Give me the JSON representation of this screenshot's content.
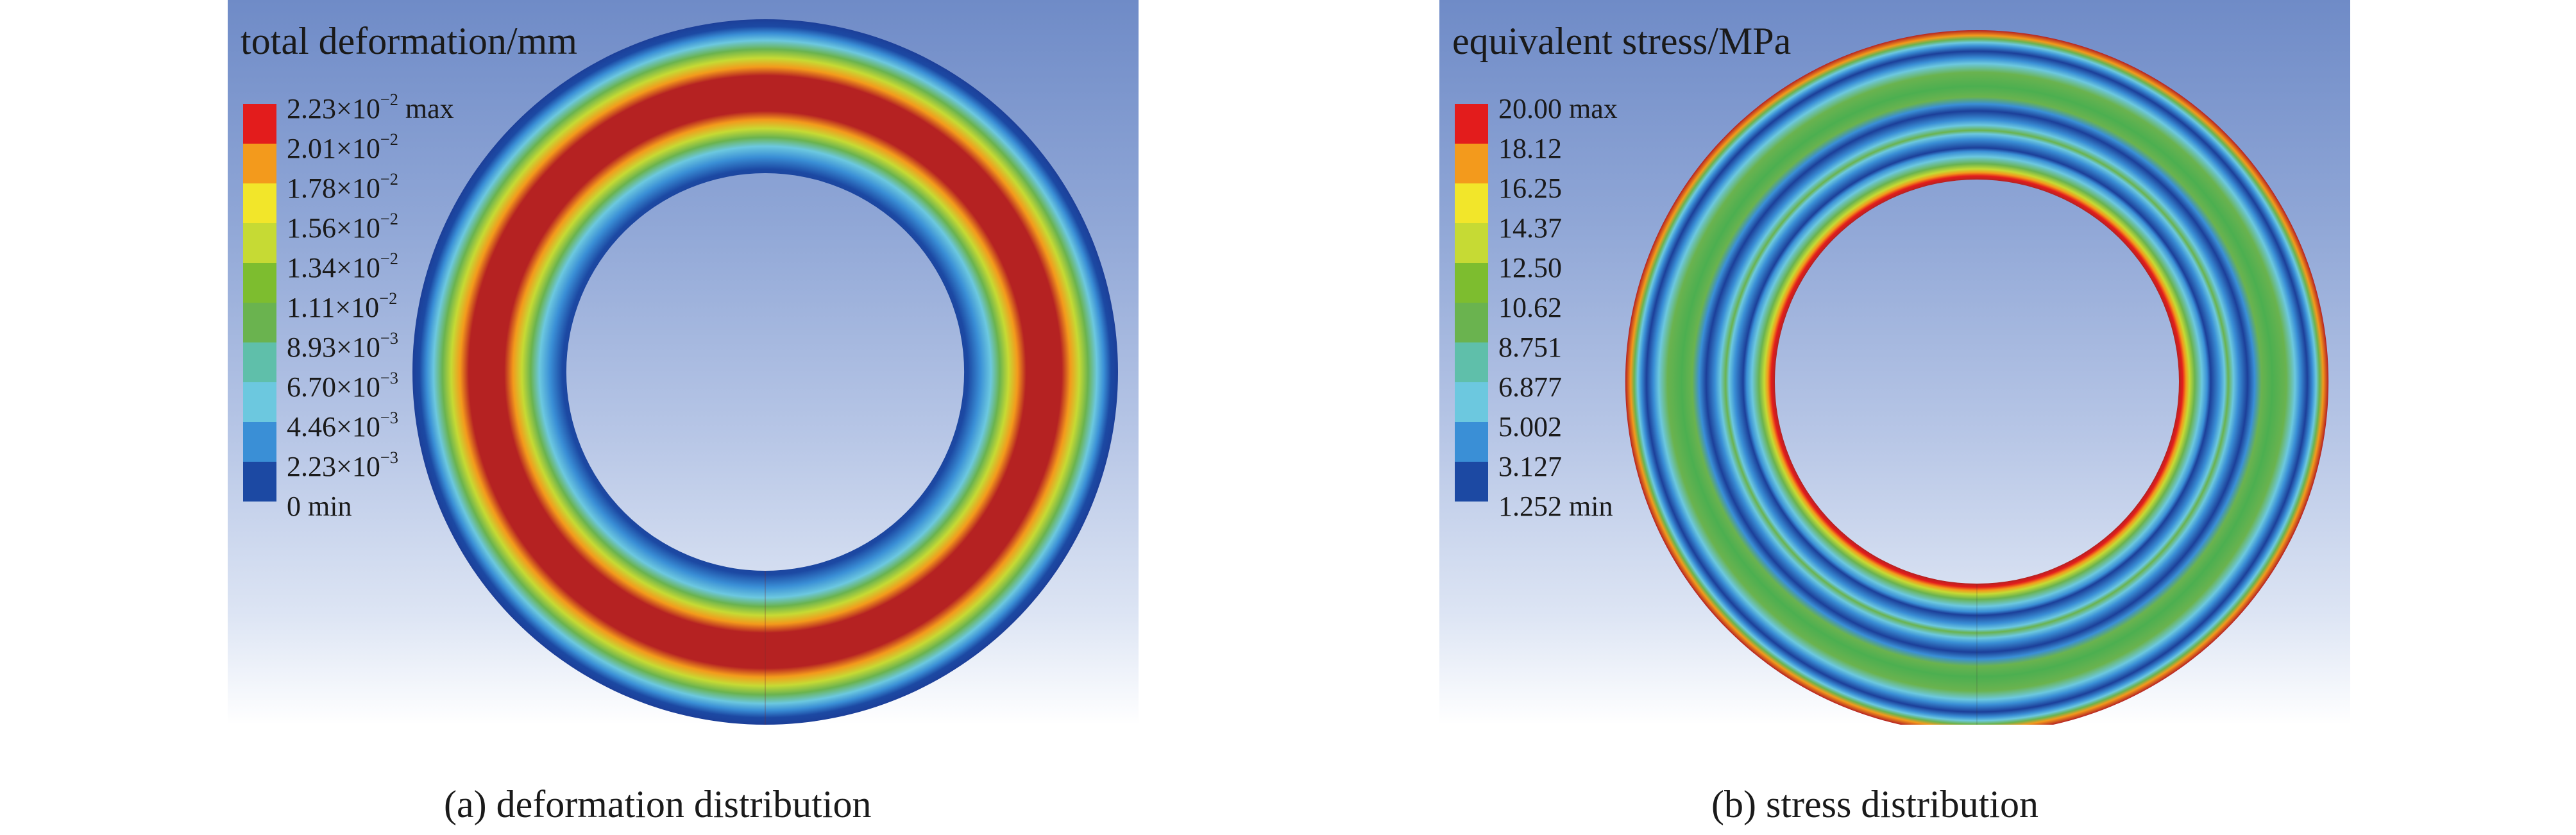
{
  "panels": [
    {
      "id": "a",
      "title": "total deformation/mm",
      "caption": "(a) deformation distribution",
      "legend": [
        {
          "value": "2.23×10",
          "exp": "−2",
          "suffix": " max",
          "color": "#e31c1c"
        },
        {
          "value": "2.01×10",
          "exp": "−2",
          "suffix": "",
          "color": "#f39a1c"
        },
        {
          "value": "1.78×10",
          "exp": "−2",
          "suffix": "",
          "color": "#f2e62a"
        },
        {
          "value": "1.56×10",
          "exp": "−2",
          "suffix": "",
          "color": "#c6da34"
        },
        {
          "value": "1.34×10",
          "exp": "−2",
          "suffix": "",
          "color": "#7dbd2f"
        },
        {
          "value": "1.11×10",
          "exp": "−2",
          "suffix": "",
          "color": "#6ab34f"
        },
        {
          "value": "8.93×10",
          "exp": "−3",
          "suffix": "",
          "color": "#5fbfaa"
        },
        {
          "value": "6.70×10",
          "exp": "−3",
          "suffix": "",
          "color": "#6cc8df"
        },
        {
          "value": "4.46×10",
          "exp": "−3",
          "suffix": "",
          "color": "#3a8fd6"
        },
        {
          "value": "2.23×10",
          "exp": "−3",
          "suffix": "",
          "color": "#1c49a3"
        }
      ],
      "legend_min": "0 min"
    },
    {
      "id": "b",
      "title": "equivalent stress/MPa",
      "caption": "(b) stress distribution",
      "legend": [
        {
          "value": "20.00",
          "exp": "",
          "suffix": " max",
          "color": "#e31c1c"
        },
        {
          "value": "18.12",
          "exp": "",
          "suffix": "",
          "color": "#f39a1c"
        },
        {
          "value": "16.25",
          "exp": "",
          "suffix": "",
          "color": "#f2e62a"
        },
        {
          "value": "14.37",
          "exp": "",
          "suffix": "",
          "color": "#c6da34"
        },
        {
          "value": "12.50",
          "exp": "",
          "suffix": "",
          "color": "#7dbd2f"
        },
        {
          "value": "10.62",
          "exp": "",
          "suffix": "",
          "color": "#6ab34f"
        },
        {
          "value": "8.751",
          "exp": "",
          "suffix": "",
          "color": "#5fbfaa"
        },
        {
          "value": "6.877",
          "exp": "",
          "suffix": "",
          "color": "#6cc8df"
        },
        {
          "value": "5.002",
          "exp": "",
          "suffix": "",
          "color": "#3a8fd6"
        },
        {
          "value": "3.127",
          "exp": "",
          "suffix": "",
          "color": "#1c49a3"
        }
      ],
      "legend_min": "1.252 min"
    }
  ]
}
